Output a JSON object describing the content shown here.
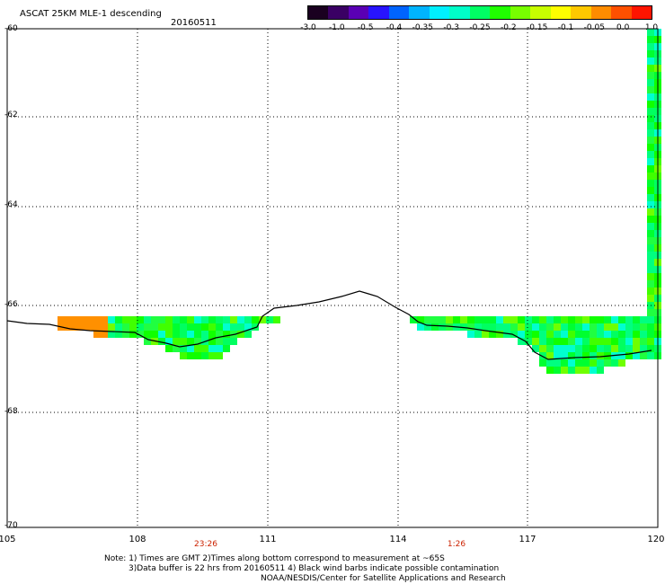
{
  "header": {
    "title": "ASCAT 25KM MLE-1 descending",
    "date": "20160511"
  },
  "colorbar": {
    "labels": [
      "-3.0",
      "-1.0",
      "-0.5",
      "-0.4",
      "-0.35",
      "-0.3",
      "-0.25",
      "-0.2",
      "-0.15",
      "-0.1",
      "-0.05",
      "0.0",
      "1.0"
    ],
    "colors": [
      "#1a0020",
      "#3a0064",
      "#5a00b4",
      "#2814ff",
      "#0064ff",
      "#00b4ff",
      "#00f0ff",
      "#00ffc8",
      "#00ff64",
      "#20ff00",
      "#78ff00",
      "#c8ff00",
      "#ffff00",
      "#ffc800",
      "#ff8c00",
      "#ff5000",
      "#ff1400"
    ]
  },
  "axes": {
    "latitude_labels": [
      "-60",
      "-62",
      "-64",
      "-66",
      "-68",
      "-70"
    ],
    "longitude_labels": [
      "105",
      "108",
      "111",
      "114",
      "117",
      "120"
    ]
  },
  "times": [
    "23:26",
    "1:26"
  ],
  "notes": {
    "line1": "Note: 1) Times are GMT 2)Times along bottom correspond to measurement at ~65S",
    "line2": "3)Data buffer is 22 hrs from 20160511 4) Black wind barbs indicate possible contamination",
    "line3": "NOAA/NESDIS/Center for Satellite Applications and Research"
  }
}
